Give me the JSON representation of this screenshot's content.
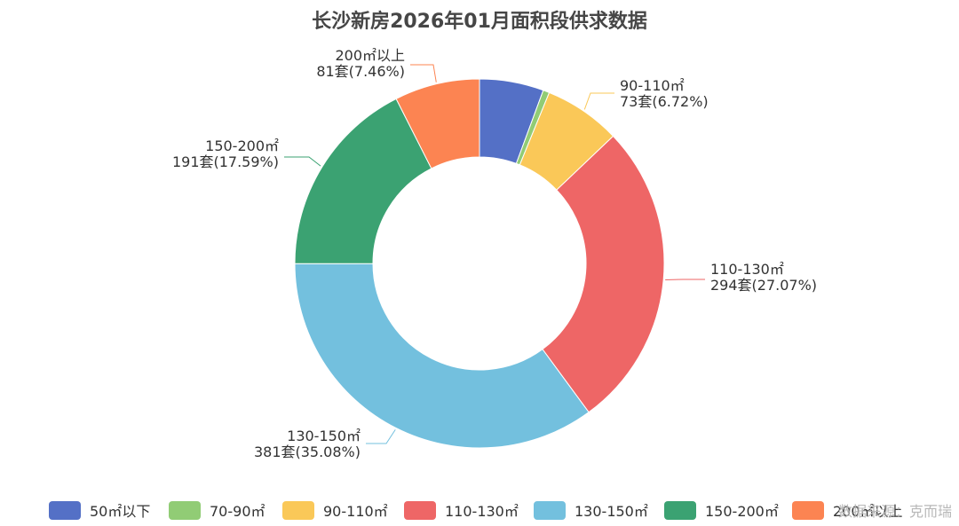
{
  "chart_data": {
    "type": "pie",
    "variant": "donut",
    "title": "长沙新房2026年01月面积段供求数据",
    "series": [
      {
        "name": "50㎡以下",
        "value": 61,
        "value_label": "",
        "percent_label": "",
        "color": "#5470c6"
      },
      {
        "name": "70-90㎡",
        "value": 6,
        "value_label": "",
        "percent_label": "",
        "color": "#91cc75"
      },
      {
        "name": "90-110㎡",
        "value": 73,
        "value_label": "73套",
        "percent_label": "(6.72%)",
        "color": "#fac858"
      },
      {
        "name": "110-130㎡",
        "value": 294,
        "value_label": "294套",
        "percent_label": "(27.07%)",
        "color": "#ee6666"
      },
      {
        "name": "130-150㎡",
        "value": 381,
        "value_label": "381套",
        "percent_label": "(35.08%)",
        "color": "#73c0de"
      },
      {
        "name": "150-200㎡",
        "value": 191,
        "value_label": "191套",
        "percent_label": "(17.59%)",
        "color": "#3ba272"
      },
      {
        "name": "200㎡以上",
        "value": 81,
        "value_label": "81套",
        "percent_label": "(7.46%)",
        "color": "#fc8452"
      }
    ],
    "legend_position": "bottom"
  },
  "watermark": "数据来源：克而瑞"
}
